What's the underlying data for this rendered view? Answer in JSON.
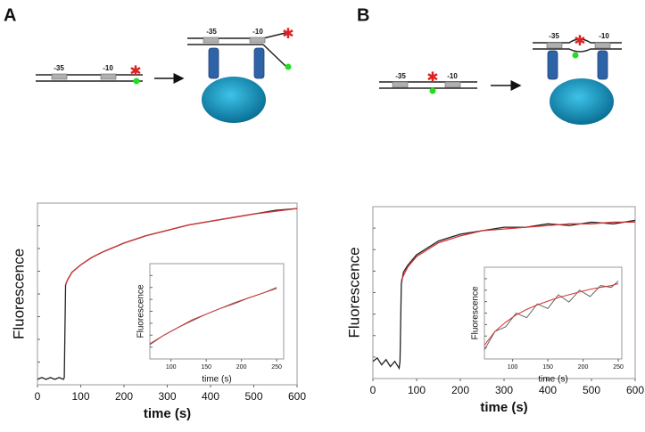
{
  "panel_labels": [
    "A",
    "B"
  ],
  "diagrams": [
    {
      "before": [
        "-35",
        "-10"
      ],
      "after": [
        "-35",
        "-10"
      ]
    },
    {
      "before": [
        "-35",
        "-10"
      ],
      "after": [
        "-35",
        "-10"
      ]
    }
  ],
  "chart_data": [
    {
      "type": "line",
      "x_label": "time (s)",
      "y_label": "Fluorescence",
      "x": [
        0,
        10,
        20,
        30,
        40,
        50,
        60,
        62,
        65,
        70,
        80,
        100,
        125,
        150,
        200,
        250,
        300,
        350,
        400,
        450,
        500,
        550,
        600
      ],
      "xlim": [
        0,
        600
      ],
      "xticks": [
        0,
        100,
        200,
        300,
        400,
        500,
        600
      ],
      "ylim": [
        0,
        1
      ],
      "series": [
        {
          "color": "#222222",
          "values": [
            0.03,
            0.04,
            0.03,
            0.04,
            0.03,
            0.04,
            0.03,
            0.04,
            0.55,
            0.58,
            0.62,
            0.66,
            0.7,
            0.73,
            0.78,
            0.82,
            0.85,
            0.88,
            0.9,
            0.92,
            0.94,
            0.96,
            0.97
          ]
        },
        {
          "color": "#d33333",
          "values": [
            null,
            null,
            null,
            null,
            null,
            null,
            null,
            null,
            0.55,
            0.58,
            0.62,
            0.66,
            0.7,
            0.73,
            0.78,
            0.82,
            0.85,
            0.88,
            0.9,
            0.92,
            0.94,
            0.955,
            0.97
          ]
        }
      ]
    },
    {
      "type": "line",
      "x_label": "time (s)",
      "y_label": "Fluorescence",
      "x": [
        70,
        90,
        110,
        130,
        150,
        170,
        190,
        210,
        230,
        250
      ],
      "xlim": [
        70,
        260
      ],
      "xticks": [
        100,
        150,
        200,
        250
      ],
      "ylim": [
        0,
        1
      ],
      "series": [
        {
          "color": "#666666",
          "values": [
            0.15,
            0.25,
            0.33,
            0.4,
            0.47,
            0.53,
            0.59,
            0.64,
            0.69,
            0.75
          ]
        },
        {
          "color": "#d33333",
          "values": [
            0.16,
            0.25,
            0.33,
            0.41,
            0.47,
            0.53,
            0.58,
            0.64,
            0.69,
            0.74
          ]
        }
      ]
    },
    {
      "type": "line",
      "x_label": "time (s)",
      "y_label": "Fluorescence",
      "x": [
        0,
        10,
        20,
        30,
        40,
        50,
        60,
        62,
        65,
        70,
        80,
        100,
        125,
        150,
        200,
        250,
        300,
        350,
        400,
        450,
        500,
        550,
        600
      ],
      "xlim": [
        0,
        600
      ],
      "xticks": [
        0,
        100,
        200,
        300,
        400,
        500,
        600
      ],
      "ylim": [
        0,
        1
      ],
      "series": [
        {
          "color": "#222222",
          "values": [
            0.1,
            0.12,
            0.08,
            0.11,
            0.07,
            0.1,
            0.06,
            0.1,
            0.55,
            0.62,
            0.66,
            0.72,
            0.76,
            0.8,
            0.84,
            0.86,
            0.88,
            0.88,
            0.9,
            0.89,
            0.91,
            0.9,
            0.92
          ]
        },
        {
          "color": "#d33333",
          "values": [
            null,
            null,
            null,
            null,
            null,
            null,
            null,
            null,
            0.57,
            0.6,
            0.65,
            0.71,
            0.75,
            0.79,
            0.83,
            0.86,
            0.87,
            0.88,
            0.89,
            0.9,
            0.9,
            0.91,
            0.91
          ]
        }
      ]
    },
    {
      "type": "line",
      "x_label": "time (s)",
      "y_label": "Fluorescence",
      "x": [
        60,
        75,
        90,
        105,
        120,
        135,
        150,
        165,
        180,
        195,
        210,
        225,
        240,
        250
      ],
      "xlim": [
        60,
        255
      ],
      "xticks": [
        100,
        150,
        200,
        250
      ],
      "ylim": [
        0,
        1
      ],
      "series": [
        {
          "color": "#666666",
          "values": [
            0.1,
            0.3,
            0.35,
            0.5,
            0.45,
            0.6,
            0.55,
            0.7,
            0.62,
            0.75,
            0.68,
            0.8,
            0.78,
            0.85
          ]
        },
        {
          "color": "#d33333",
          "values": [
            0.15,
            0.3,
            0.4,
            0.48,
            0.54,
            0.59,
            0.63,
            0.67,
            0.7,
            0.73,
            0.76,
            0.78,
            0.8,
            0.82
          ]
        }
      ]
    }
  ]
}
